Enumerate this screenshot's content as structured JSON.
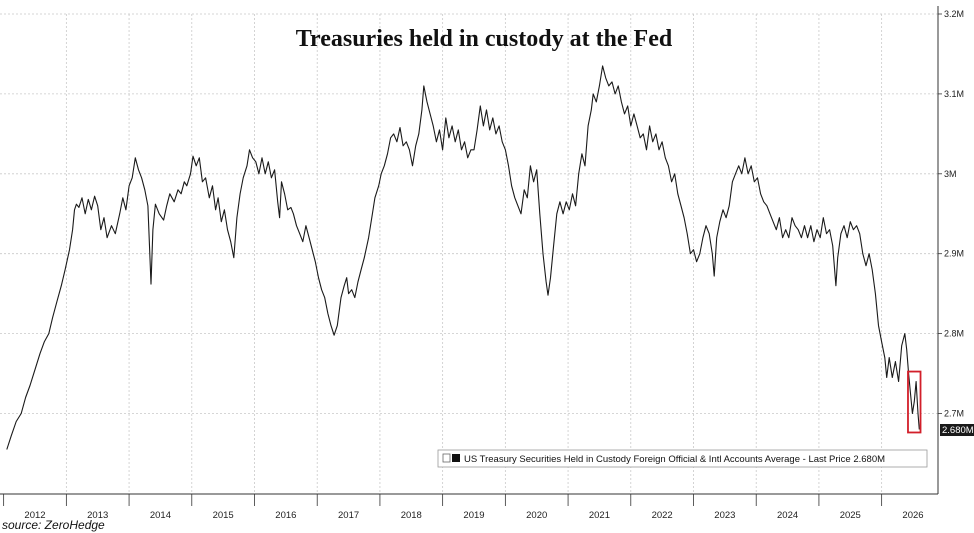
{
  "chart_data": {
    "type": "line",
    "title": "Treasuries held in custody at the Fed",
    "source": "source: ZeroHedge",
    "y_axis_side": "right",
    "ylim": [
      2.6,
      3.2
    ],
    "y_ticks": [
      {
        "value": 3.2,
        "label": "3.2M"
      },
      {
        "value": 3.1,
        "label": "3.1M"
      },
      {
        "value": 3.0,
        "label": "3M"
      },
      {
        "value": 2.9,
        "label": "2.9M"
      },
      {
        "value": 2.8,
        "label": "2.8M"
      },
      {
        "value": 2.7,
        "label": "2.7M"
      }
    ],
    "xlim": [
      2012.0,
      2026.5
    ],
    "x_ticks": [
      "2012",
      "2013",
      "2014",
      "2015",
      "2016",
      "2017",
      "2018",
      "2019",
      "2020",
      "2021",
      "2022",
      "2023",
      "2024",
      "2025",
      "2026"
    ],
    "grid": true,
    "legend_placement": "bottom-right",
    "last_price_label": "2.680M",
    "highlight": {
      "x_start": 2025.92,
      "x_end": 2026.12,
      "y_start": 2.68,
      "y_end": 2.75,
      "color": "#d21f2a"
    },
    "series": [
      {
        "name": "US Treasury Securities Held in Custody Foreign Official & Intl Accounts Average - Last Price 2.680M",
        "color": "#1a1a1a",
        "points": [
          [
            2011.55,
            2.655
          ],
          [
            2011.62,
            2.672
          ],
          [
            2011.7,
            2.69
          ],
          [
            2011.78,
            2.7
          ],
          [
            2011.85,
            2.72
          ],
          [
            2011.92,
            2.735
          ],
          [
            2012.0,
            2.755
          ],
          [
            2012.08,
            2.775
          ],
          [
            2012.15,
            2.79
          ],
          [
            2012.22,
            2.8
          ],
          [
            2012.28,
            2.82
          ],
          [
            2012.35,
            2.84
          ],
          [
            2012.42,
            2.86
          ],
          [
            2012.48,
            2.88
          ],
          [
            2012.55,
            2.905
          ],
          [
            2012.6,
            2.93
          ],
          [
            2012.63,
            2.955
          ],
          [
            2012.66,
            2.962
          ],
          [
            2012.7,
            2.958
          ],
          [
            2012.75,
            2.97
          ],
          [
            2012.8,
            2.95
          ],
          [
            2012.85,
            2.968
          ],
          [
            2012.9,
            2.955
          ],
          [
            2012.95,
            2.972
          ],
          [
            2013.0,
            2.96
          ],
          [
            2013.05,
            2.93
          ],
          [
            2013.1,
            2.945
          ],
          [
            2013.15,
            2.92
          ],
          [
            2013.22,
            2.935
          ],
          [
            2013.28,
            2.925
          ],
          [
            2013.35,
            2.95
          ],
          [
            2013.4,
            2.97
          ],
          [
            2013.45,
            2.955
          ],
          [
            2013.5,
            2.985
          ],
          [
            2013.55,
            2.995
          ],
          [
            2013.6,
            3.02
          ],
          [
            2013.65,
            3.005
          ],
          [
            2013.7,
            2.995
          ],
          [
            2013.75,
            2.98
          ],
          [
            2013.8,
            2.96
          ],
          [
            2013.83,
            2.9
          ],
          [
            2013.85,
            2.862
          ],
          [
            2013.88,
            2.93
          ],
          [
            2013.92,
            2.962
          ],
          [
            2013.98,
            2.95
          ],
          [
            2014.05,
            2.942
          ],
          [
            2014.1,
            2.96
          ],
          [
            2014.15,
            2.975
          ],
          [
            2014.22,
            2.965
          ],
          [
            2014.28,
            2.98
          ],
          [
            2014.33,
            2.975
          ],
          [
            2014.38,
            2.99
          ],
          [
            2014.42,
            2.985
          ],
          [
            2014.48,
            3.0
          ],
          [
            2014.52,
            3.022
          ],
          [
            2014.57,
            3.01
          ],
          [
            2014.62,
            3.02
          ],
          [
            2014.67,
            2.99
          ],
          [
            2014.72,
            2.995
          ],
          [
            2014.78,
            2.97
          ],
          [
            2014.83,
            2.985
          ],
          [
            2014.88,
            2.955
          ],
          [
            2014.92,
            2.97
          ],
          [
            2014.97,
            2.94
          ],
          [
            2015.02,
            2.955
          ],
          [
            2015.07,
            2.93
          ],
          [
            2015.12,
            2.915
          ],
          [
            2015.17,
            2.895
          ],
          [
            2015.22,
            2.945
          ],
          [
            2015.27,
            2.975
          ],
          [
            2015.32,
            2.995
          ],
          [
            2015.38,
            3.01
          ],
          [
            2015.42,
            3.03
          ],
          [
            2015.47,
            3.02
          ],
          [
            2015.52,
            3.015
          ],
          [
            2015.57,
            3.0
          ],
          [
            2015.62,
            3.02
          ],
          [
            2015.67,
            3.0
          ],
          [
            2015.72,
            3.015
          ],
          [
            2015.77,
            2.995
          ],
          [
            2015.82,
            3.005
          ],
          [
            2015.87,
            2.965
          ],
          [
            2015.9,
            2.945
          ],
          [
            2015.93,
            2.99
          ],
          [
            2015.98,
            2.975
          ],
          [
            2016.03,
            2.955
          ],
          [
            2016.08,
            2.958
          ],
          [
            2016.12,
            2.95
          ],
          [
            2016.17,
            2.935
          ],
          [
            2016.22,
            2.925
          ],
          [
            2016.27,
            2.915
          ],
          [
            2016.32,
            2.935
          ],
          [
            2016.37,
            2.92
          ],
          [
            2016.42,
            2.905
          ],
          [
            2016.47,
            2.89
          ],
          [
            2016.52,
            2.87
          ],
          [
            2016.57,
            2.855
          ],
          [
            2016.62,
            2.845
          ],
          [
            2016.67,
            2.825
          ],
          [
            2016.72,
            2.81
          ],
          [
            2016.77,
            2.798
          ],
          [
            2016.82,
            2.81
          ],
          [
            2016.88,
            2.845
          ],
          [
            2016.93,
            2.86
          ],
          [
            2016.97,
            2.87
          ],
          [
            2017.0,
            2.85
          ],
          [
            2017.05,
            2.855
          ],
          [
            2017.1,
            2.845
          ],
          [
            2017.15,
            2.865
          ],
          [
            2017.2,
            2.88
          ],
          [
            2017.25,
            2.895
          ],
          [
            2017.32,
            2.92
          ],
          [
            2017.38,
            2.95
          ],
          [
            2017.42,
            2.97
          ],
          [
            2017.48,
            2.985
          ],
          [
            2017.52,
            3.0
          ],
          [
            2017.57,
            3.01
          ],
          [
            2017.62,
            3.025
          ],
          [
            2017.67,
            3.045
          ],
          [
            2017.72,
            3.05
          ],
          [
            2017.77,
            3.04
          ],
          [
            2017.82,
            3.058
          ],
          [
            2017.87,
            3.035
          ],
          [
            2017.92,
            3.04
          ],
          [
            2017.97,
            3.03
          ],
          [
            2018.02,
            3.01
          ],
          [
            2018.07,
            3.035
          ],
          [
            2018.12,
            3.05
          ],
          [
            2018.17,
            3.08
          ],
          [
            2018.2,
            3.11
          ],
          [
            2018.25,
            3.09
          ],
          [
            2018.3,
            3.075
          ],
          [
            2018.35,
            3.06
          ],
          [
            2018.4,
            3.04
          ],
          [
            2018.45,
            3.055
          ],
          [
            2018.5,
            3.03
          ],
          [
            2018.55,
            3.07
          ],
          [
            2018.6,
            3.045
          ],
          [
            2018.65,
            3.06
          ],
          [
            2018.7,
            3.04
          ],
          [
            2018.75,
            3.055
          ],
          [
            2018.8,
            3.03
          ],
          [
            2018.85,
            3.04
          ],
          [
            2018.9,
            3.02
          ],
          [
            2018.95,
            3.03
          ],
          [
            2019.0,
            3.03
          ],
          [
            2019.05,
            3.055
          ],
          [
            2019.1,
            3.085
          ],
          [
            2019.15,
            3.06
          ],
          [
            2019.2,
            3.08
          ],
          [
            2019.25,
            3.055
          ],
          [
            2019.3,
            3.07
          ],
          [
            2019.35,
            3.05
          ],
          [
            2019.4,
            3.06
          ],
          [
            2019.45,
            3.04
          ],
          [
            2019.5,
            3.03
          ],
          [
            2019.55,
            3.01
          ],
          [
            2019.6,
            2.985
          ],
          [
            2019.65,
            2.97
          ],
          [
            2019.7,
            2.96
          ],
          [
            2019.75,
            2.95
          ],
          [
            2019.8,
            2.98
          ],
          [
            2019.85,
            2.97
          ],
          [
            2019.9,
            3.01
          ],
          [
            2019.95,
            2.99
          ],
          [
            2020.0,
            3.005
          ],
          [
            2020.05,
            2.95
          ],
          [
            2020.1,
            2.9
          ],
          [
            2020.15,
            2.865
          ],
          [
            2020.18,
            2.848
          ],
          [
            2020.22,
            2.87
          ],
          [
            2020.27,
            2.91
          ],
          [
            2020.32,
            2.95
          ],
          [
            2020.37,
            2.965
          ],
          [
            2020.42,
            2.95
          ],
          [
            2020.47,
            2.965
          ],
          [
            2020.52,
            2.955
          ],
          [
            2020.57,
            2.975
          ],
          [
            2020.62,
            2.96
          ],
          [
            2020.67,
            3.0
          ],
          [
            2020.72,
            3.025
          ],
          [
            2020.77,
            3.01
          ],
          [
            2020.82,
            3.06
          ],
          [
            2020.87,
            3.08
          ],
          [
            2020.9,
            3.1
          ],
          [
            2020.95,
            3.09
          ],
          [
            2021.0,
            3.11
          ],
          [
            2021.05,
            3.135
          ],
          [
            2021.1,
            3.12
          ],
          [
            2021.15,
            3.11
          ],
          [
            2021.2,
            3.115
          ],
          [
            2021.25,
            3.1
          ],
          [
            2021.3,
            3.11
          ],
          [
            2021.35,
            3.09
          ],
          [
            2021.4,
            3.075
          ],
          [
            2021.45,
            3.085
          ],
          [
            2021.5,
            3.06
          ],
          [
            2021.55,
            3.075
          ],
          [
            2021.6,
            3.06
          ],
          [
            2021.65,
            3.045
          ],
          [
            2021.7,
            3.05
          ],
          [
            2021.75,
            3.03
          ],
          [
            2021.8,
            3.06
          ],
          [
            2021.85,
            3.04
          ],
          [
            2021.9,
            3.05
          ],
          [
            2021.95,
            3.03
          ],
          [
            2022.0,
            3.04
          ],
          [
            2022.05,
            3.02
          ],
          [
            2022.1,
            3.01
          ],
          [
            2022.15,
            2.99
          ],
          [
            2022.2,
            3.0
          ],
          [
            2022.25,
            2.975
          ],
          [
            2022.3,
            2.96
          ],
          [
            2022.35,
            2.945
          ],
          [
            2022.4,
            2.925
          ],
          [
            2022.45,
            2.9
          ],
          [
            2022.5,
            2.905
          ],
          [
            2022.55,
            2.89
          ],
          [
            2022.6,
            2.9
          ],
          [
            2022.65,
            2.92
          ],
          [
            2022.7,
            2.935
          ],
          [
            2022.75,
            2.925
          ],
          [
            2022.8,
            2.9
          ],
          [
            2022.83,
            2.872
          ],
          [
            2022.87,
            2.92
          ],
          [
            2022.92,
            2.94
          ],
          [
            2022.97,
            2.955
          ],
          [
            2023.02,
            2.945
          ],
          [
            2023.07,
            2.96
          ],
          [
            2023.12,
            2.99
          ],
          [
            2023.17,
            3.0
          ],
          [
            2023.22,
            3.01
          ],
          [
            2023.27,
            3.0
          ],
          [
            2023.32,
            3.02
          ],
          [
            2023.37,
            3.0
          ],
          [
            2023.42,
            3.01
          ],
          [
            2023.47,
            2.99
          ],
          [
            2023.52,
            2.995
          ],
          [
            2023.57,
            2.975
          ],
          [
            2023.62,
            2.965
          ],
          [
            2023.67,
            2.96
          ],
          [
            2023.72,
            2.95
          ],
          [
            2023.77,
            2.94
          ],
          [
            2023.82,
            2.93
          ],
          [
            2023.87,
            2.945
          ],
          [
            2023.92,
            2.92
          ],
          [
            2023.97,
            2.93
          ],
          [
            2024.02,
            2.92
          ],
          [
            2024.07,
            2.945
          ],
          [
            2024.12,
            2.935
          ],
          [
            2024.17,
            2.93
          ],
          [
            2024.22,
            2.92
          ],
          [
            2024.27,
            2.935
          ],
          [
            2024.32,
            2.92
          ],
          [
            2024.37,
            2.935
          ],
          [
            2024.42,
            2.915
          ],
          [
            2024.47,
            2.93
          ],
          [
            2024.52,
            2.92
          ],
          [
            2024.57,
            2.945
          ],
          [
            2024.62,
            2.925
          ],
          [
            2024.67,
            2.93
          ],
          [
            2024.72,
            2.91
          ],
          [
            2024.77,
            2.86
          ],
          [
            2024.8,
            2.895
          ],
          [
            2024.85,
            2.925
          ],
          [
            2024.9,
            2.935
          ],
          [
            2024.95,
            2.92
          ],
          [
            2025.0,
            2.94
          ],
          [
            2025.05,
            2.93
          ],
          [
            2025.1,
            2.935
          ],
          [
            2025.15,
            2.925
          ],
          [
            2025.2,
            2.9
          ],
          [
            2025.25,
            2.885
          ],
          [
            2025.3,
            2.9
          ],
          [
            2025.35,
            2.88
          ],
          [
            2025.4,
            2.85
          ],
          [
            2025.45,
            2.81
          ],
          [
            2025.5,
            2.79
          ],
          [
            2025.55,
            2.77
          ],
          [
            2025.58,
            2.745
          ],
          [
            2025.62,
            2.77
          ],
          [
            2025.67,
            2.745
          ],
          [
            2025.72,
            2.765
          ],
          [
            2025.77,
            2.74
          ],
          [
            2025.82,
            2.785
          ],
          [
            2025.87,
            2.8
          ],
          [
            2025.9,
            2.78
          ],
          [
            2025.93,
            2.75
          ],
          [
            2025.96,
            2.725
          ],
          [
            2025.99,
            2.7
          ],
          [
            2026.02,
            2.715
          ],
          [
            2026.05,
            2.74
          ],
          [
            2026.08,
            2.7
          ],
          [
            2026.1,
            2.68
          ]
        ]
      }
    ]
  }
}
